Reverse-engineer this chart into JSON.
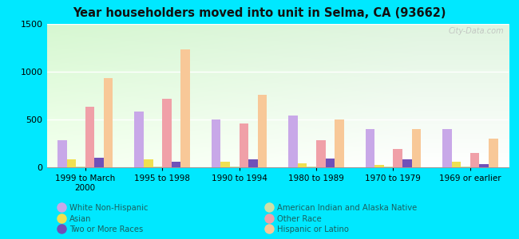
{
  "title": "Year householders moved into unit in Selma, CA (93662)",
  "categories": [
    "1999 to March\n2000",
    "1995 to 1998",
    "1990 to 1994",
    "1980 to 1989",
    "1970 to 1979",
    "1969 or earlier"
  ],
  "series_order": [
    "White Non-Hispanic",
    "Asian",
    "American Indian and Alaska Native",
    "Other Race",
    "Two or More Races",
    "Hispanic or Latino"
  ],
  "series": {
    "White Non-Hispanic": [
      280,
      580,
      500,
      540,
      400,
      400
    ],
    "Asian": [
      80,
      80,
      55,
      45,
      25,
      55
    ],
    "American Indian and Alaska Native": [
      5,
      5,
      5,
      5,
      5,
      5
    ],
    "Other Race": [
      630,
      720,
      460,
      280,
      190,
      150
    ],
    "Two or More Races": [
      100,
      55,
      80,
      90,
      80,
      30
    ],
    "Hispanic or Latino": [
      930,
      1230,
      760,
      500,
      400,
      300
    ]
  },
  "colors": {
    "White Non-Hispanic": "#c8a8e8",
    "Asian": "#f0e050",
    "American Indian and Alaska Native": "#cce0a8",
    "Other Race": "#f0a0a8",
    "Two or More Races": "#7050b8",
    "Hispanic or Latino": "#f8c898"
  },
  "legend_colors": {
    "White Non-Hispanic": "#c8a8e8",
    "Asian": "#f0e050",
    "American Indian and Alaska Native": "#cce0a8",
    "Other Race": "#f0a0a8",
    "Two or More Races": "#7050b8",
    "Hispanic or Latino": "#f8c898"
  },
  "ylim": [
    0,
    1500
  ],
  "yticks": [
    0,
    500,
    1000,
    1500
  ],
  "outer_bg": "#00e8ff",
  "plot_bg": "#e0f0e0",
  "watermark": "City-Data.com"
}
